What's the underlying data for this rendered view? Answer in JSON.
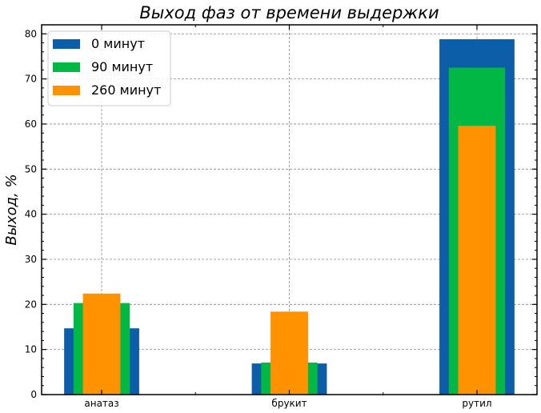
{
  "chart_data": {
    "type": "bar",
    "title": "Выход фаз от времени выдержки",
    "ylabel": "Выход, %",
    "xlabel": "",
    "categories": [
      "анатаз",
      "брукит",
      "рутил"
    ],
    "ylim": [
      0,
      82
    ],
    "yticks": [
      0,
      10,
      20,
      30,
      40,
      50,
      60,
      70,
      80
    ],
    "grid": true,
    "legend_position": "top-left",
    "bars_overlaid": true,
    "series": [
      {
        "name": "0 минут",
        "color": "#0d5ea8",
        "values": [
          14.7,
          6.9,
          78.8
        ]
      },
      {
        "name": "90 минут",
        "color": "#00b843",
        "values": [
          20.3,
          7.1,
          72.5
        ]
      },
      {
        "name": "260 минут",
        "color": "#ff9200",
        "values": [
          22.4,
          18.4,
          59.6
        ]
      }
    ]
  }
}
